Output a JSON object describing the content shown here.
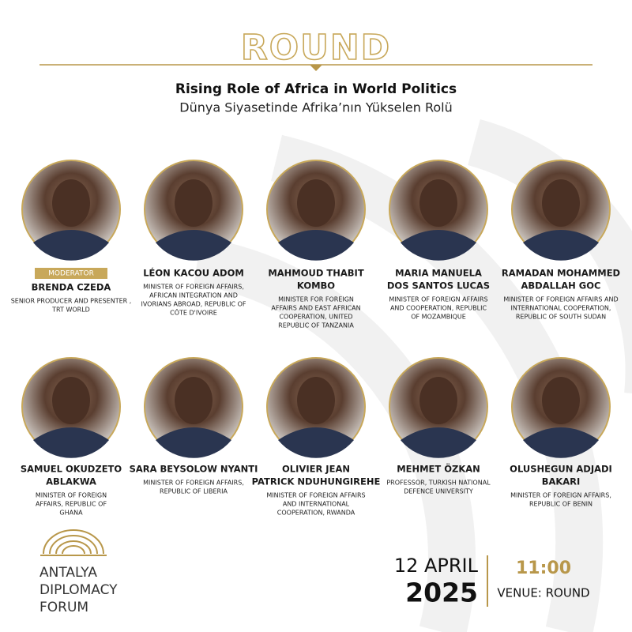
{
  "header": {
    "word": "ROUND",
    "title": "Rising Role of Africa in World Politics",
    "subtitle": "Dünya Siyasetinde Afrika’nın Yükselen Rolü"
  },
  "speakers": [
    {
      "label": "MODERATOR",
      "name": [
        "BRENDA CZEDA"
      ],
      "role": [
        "SENIOR PRODUCER AND PRESENTER ,",
        "TRT WORLD"
      ]
    },
    {
      "name": [
        "LÉON KACOU ADOM"
      ],
      "role": [
        "MINISTER OF FOREIGN AFFAIRS,",
        "AFRICAN INTEGRATION AND",
        "IVORIANS ABROAD, REPUBLIC OF",
        "CÔTE D'IVOIRE"
      ]
    },
    {
      "name": [
        "MAHMOUD THABIT",
        "KOMBO"
      ],
      "role": [
        "MINISTER FOR FOREIGN",
        "AFFAIRS AND EAST AFRICAN",
        "COOPERATION, UNITED",
        "REPUBLIC OF TANZANIA"
      ]
    },
    {
      "name": [
        "MARIA MANUELA",
        "DOS SANTOS LUCAS"
      ],
      "role": [
        "MINISTER OF FOREIGN AFFAIRS",
        "AND COOPERATION, REPUBLIC",
        "OF MOZAMBIQUE"
      ]
    },
    {
      "name": [
        "RAMADAN MOHAMMED",
        "ABDALLAH GOC"
      ],
      "role": [
        "MINISTER OF FOREIGN AFFAIRS AND",
        "INTERNATIONAL COOPERATION,",
        "REPUBLIC OF SOUTH SUDAN"
      ]
    },
    {
      "name": [
        "SAMUEL OKUDZETO",
        "ABLAKWA"
      ],
      "role": [
        "MINISTER OF FOREIGN",
        "AFFAIRS, REPUBLIC OF",
        "GHANA"
      ]
    },
    {
      "name": [
        "SARA BEYSOLOW NYANTI"
      ],
      "role": [
        "MINISTER OF FOREIGN AFFAIRS,",
        "REPUBLIC OF LIBERIA"
      ]
    },
    {
      "name": [
        "OLIVIER JEAN",
        "PATRICK NDUHUNGIREHE"
      ],
      "role": [
        "MINISTER OF FOREIGN AFFAIRS",
        "AND INTERNATIONAL",
        "COOPERATION, RWANDA"
      ]
    },
    {
      "name": [
        "MEHMET ÖZKAN"
      ],
      "role": [
        "PROFESSOR, TURKISH NATIONAL",
        "DEFENCE UNIVERSITY"
      ]
    },
    {
      "name": [
        "OLUSHEGUN ADJADI",
        "BAKARI"
      ],
      "role": [
        "MINISTER OF FOREIGN AFFAIRS,",
        "REPUBLIC OF BENIN"
      ]
    }
  ],
  "footer": {
    "logo": [
      "ANTALYA",
      "DIPLOMACY",
      "FORUM"
    ],
    "date": "12 APRIL",
    "year": "2025",
    "time": "11:00",
    "venue": "VENUE: ROUND"
  }
}
